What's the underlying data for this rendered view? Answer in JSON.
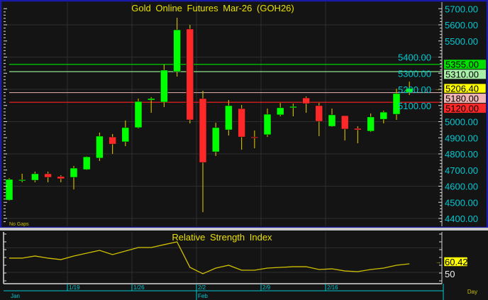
{
  "chart_data": [
    {
      "type": "candlestick",
      "title": "Gold Online Futures Mar-26 (GOH26)",
      "note": "No Gaps",
      "ylim": [
        4400,
        5700
      ],
      "y_ticks": [
        "5700.00",
        "5600.00",
        "5500.00",
        "5400.00",
        "5300.00",
        "5200.00",
        "5100.00",
        "5000.00",
        "4900.00",
        "4800.00",
        "4700.00",
        "4600.00",
        "4500.00",
        "4400.00"
      ],
      "grid": true,
      "candles": [
        [
          4514,
          4650,
          4510,
          4642
        ],
        [
          4635,
          4677,
          4624,
          4640
        ],
        [
          4637,
          4690,
          4624,
          4677
        ],
        [
          4677,
          4690,
          4624,
          4655
        ],
        [
          4660,
          4668,
          4624,
          4646
        ],
        [
          4655,
          4725,
          4580,
          4712
        ],
        [
          4703,
          4785,
          4700,
          4782
        ],
        [
          4774,
          4932,
          4756,
          4910
        ],
        [
          4905,
          4923,
          4800,
          4861
        ],
        [
          4875,
          5007,
          4848,
          4963
        ],
        [
          4963,
          5143,
          4958,
          5125
        ],
        [
          5134,
          5152,
          5055,
          5143
        ],
        [
          5121,
          5354,
          5090,
          5319
        ],
        [
          5310,
          5644,
          5279,
          5569
        ],
        [
          5574,
          5600,
          4989,
          5011
        ],
        [
          5143,
          5191,
          4439,
          4747
        ],
        [
          4813,
          4993,
          4787,
          4963
        ],
        [
          4949,
          5134,
          4914,
          5099
        ],
        [
          5081,
          5103,
          4826,
          4905
        ],
        [
          4905,
          4945,
          4835,
          4901
        ],
        [
          4919,
          5081,
          4905,
          5046
        ],
        [
          5042,
          5116,
          5033,
          5086
        ],
        [
          5086,
          5112,
          5033,
          5094
        ],
        [
          5147,
          5156,
          5055,
          5112
        ],
        [
          5099,
          5116,
          4910,
          5002
        ],
        [
          4971,
          5081,
          4967,
          5042
        ],
        [
          5037,
          5037,
          4883,
          4954
        ],
        [
          4958,
          4971,
          4866,
          4949
        ],
        [
          4941,
          5051,
          4936,
          5029
        ],
        [
          5015,
          5068,
          4989,
          5059
        ],
        [
          5046,
          5204,
          5011,
          5174
        ],
        [
          5182,
          5248,
          5165,
          5206.4
        ]
      ],
      "levels": [
        {
          "label": "5355.00",
          "value": 5355,
          "color": "#00d000",
          "tag_color": "#00e000"
        },
        {
          "label": "5310.00",
          "value": 5310,
          "color": "#90e090",
          "tag_color": "#a8f0a8"
        },
        {
          "label": "5180.00",
          "value": 5180,
          "color": "#d0a0a0",
          "tag_color": "#f0b4b4"
        },
        {
          "label": "5120.00",
          "value": 5120,
          "color": "#ff2020",
          "tag_color": "#ff2828"
        }
      ],
      "last_price": {
        "label": "5206.40",
        "value": 5206.4,
        "tag_color": "#ffff00"
      },
      "up_color": "#00ff00",
      "down_color": "#ff2828",
      "wick_color": "#c8b400"
    },
    {
      "type": "line",
      "title": "Relative Strength Index",
      "ylim": [
        35,
        100
      ],
      "y_ticks": [
        "50"
      ],
      "last_value": {
        "label": "60.42",
        "value": 60.42
      },
      "line_color": "#d0c000",
      "values": [
        67.4,
        67.4,
        70.0,
        67.4,
        65.6,
        70.0,
        73.4,
        76.9,
        71.7,
        76.0,
        80.4,
        80.4,
        83.9,
        87.3,
        56.1,
        48.3,
        55.2,
        58.7,
        52.6,
        52.6,
        55.2,
        56.1,
        56.9,
        56.9,
        53.5,
        54.3,
        51.7,
        50.9,
        53.5,
        55.2,
        58.7,
        60.42
      ]
    }
  ],
  "x_axis": {
    "week_labels": [
      {
        "label": "1/19",
        "index": 5
      },
      {
        "label": "1/26",
        "index": 10
      },
      {
        "label": "2/2",
        "index": 15
      },
      {
        "label": "2/9",
        "index": 20
      },
      {
        "label": "2/16",
        "index": 25
      }
    ],
    "month_labels": [
      {
        "label": "Jan",
        "index": 0
      },
      {
        "label": "Feb",
        "index": 15
      }
    ],
    "period": "Day"
  }
}
